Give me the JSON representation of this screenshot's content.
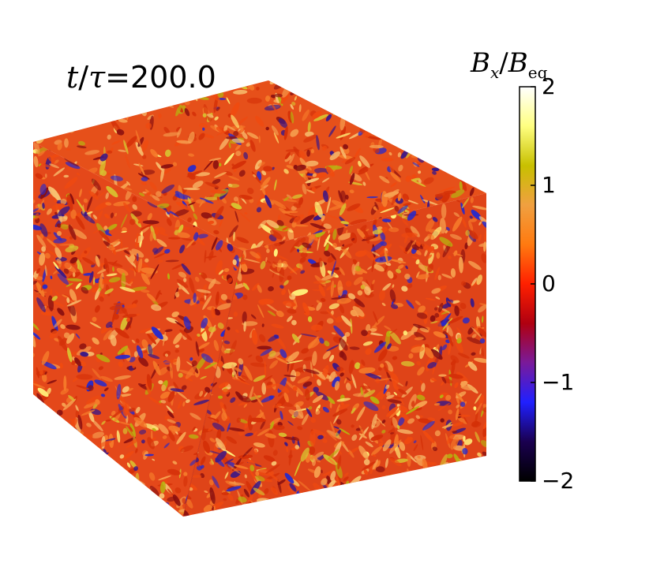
{
  "annotation": {
    "time_var": "t",
    "time_sep": "/",
    "time_unit_var": "τ",
    "time_value": "=200.0"
  },
  "colorbar": {
    "title_num": "B",
    "title_num_sub": "x",
    "title_sep": "/",
    "title_den": "B",
    "title_den_sub": "eq",
    "ticks": [
      "2",
      "1",
      "0",
      "−1",
      "−2"
    ],
    "tick_values": [
      2,
      1,
      0,
      -1,
      -2
    ],
    "range": [
      -2,
      2
    ],
    "colors": [
      "#000000",
      "#1a0050",
      "#2020ff",
      "#7a1a9a",
      "#b00010",
      "#ff2000",
      "#ff7a10",
      "#f0a040",
      "#c8c000",
      "#ffff80",
      "#ffffff"
    ]
  },
  "cube": {
    "palette": [
      "#d43008",
      "#ef4a10",
      "#f57a2a",
      "#f6a050",
      "#f8c070",
      "#d8c030",
      "#b8b010",
      "#fff07a",
      "#8a1010",
      "#3a1888",
      "#2a2ac8"
    ],
    "seed": 7
  }
}
